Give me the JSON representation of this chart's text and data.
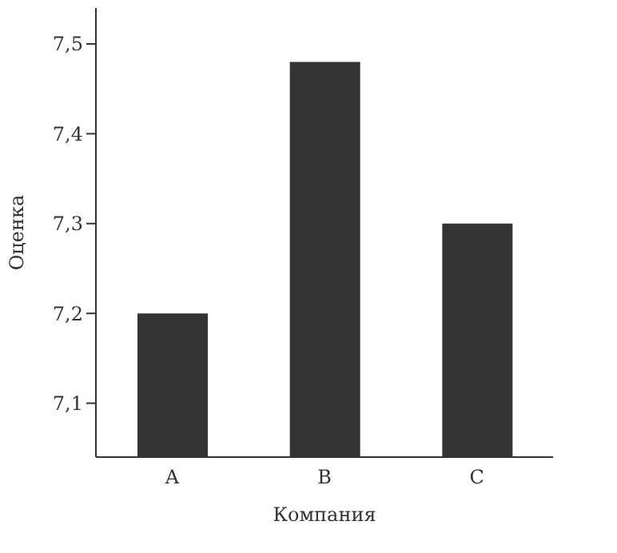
{
  "chart_data": {
    "type": "bar",
    "xlabel": "Компания",
    "ylabel": "Оценка",
    "categories": [
      "A",
      "B",
      "C"
    ],
    "values": [
      7.2,
      7.48,
      7.3
    ],
    "color": "#333333",
    "ylim": [
      7.04,
      7.54
    ],
    "yticks": [
      {
        "value": 7.1,
        "label": "7,1"
      },
      {
        "value": 7.2,
        "label": "7,2"
      },
      {
        "value": 7.3,
        "label": "7,3"
      },
      {
        "value": 7.4,
        "label": "7,4"
      },
      {
        "value": 7.5,
        "label": "7,5"
      }
    ]
  }
}
